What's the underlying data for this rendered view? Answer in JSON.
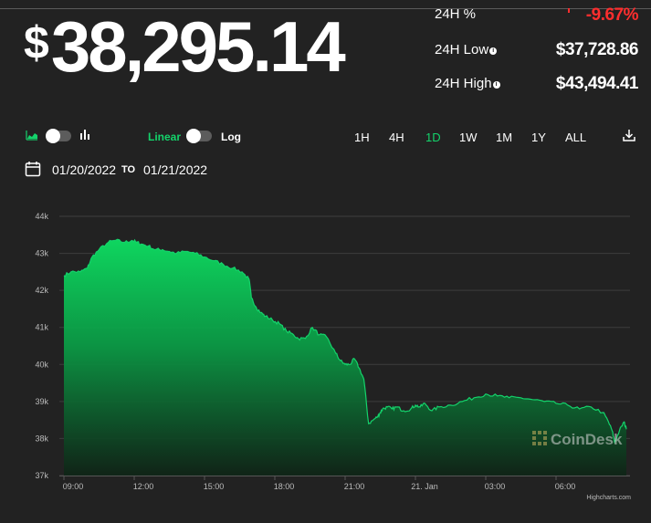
{
  "ticker": {
    "price": "$38,295.14",
    "stats": [
      {
        "label": "24H %",
        "value": "-9.67%"
      },
      {
        "label": "24H Low",
        "value": "$37,728.86"
      },
      {
        "label": "24H High",
        "value": "$43,494.41"
      }
    ]
  },
  "controls": {
    "linear_label": "Linear",
    "log_label": "Log",
    "ranges": [
      "1H",
      "4H",
      "1D",
      "1W",
      "1M",
      "1Y",
      "ALL"
    ],
    "active_range": "1D",
    "date_from": "01/20/2022",
    "to_label": "TO",
    "date_to": "01/21/2022"
  },
  "colors": {
    "accent": "#14d36b",
    "negative": "#ff2e2e",
    "background": "#222222"
  },
  "icons": {
    "area_chart": "area-chart-icon",
    "bar_chart": "bar-chart-icon",
    "calendar": "calendar-icon",
    "download": "download-icon",
    "info": "info-icon"
  },
  "watermark": "CoinDesk",
  "credits": "Highcharts.com",
  "chart_data": {
    "type": "area",
    "x_tick_labels": [
      "09:00",
      "12:00",
      "15:00",
      "18:00",
      "21:00",
      "21. Jan",
      "03:00",
      "06:00"
    ],
    "y_tick_labels": [
      "37k",
      "38k",
      "39k",
      "40k",
      "41k",
      "42k",
      "43k",
      "44k"
    ],
    "x_range_hours": [
      0,
      24
    ],
    "ylim": [
      37000,
      44000
    ],
    "grid": true,
    "series": [
      {
        "x": [
          0,
          0.3,
          0.7,
          1.0,
          1.2,
          1.5,
          1.9,
          2.2,
          2.6,
          2.9,
          3.1,
          3.3,
          3.6,
          3.9,
          4.2,
          4.5,
          4.8,
          5.2,
          5.6,
          6.0,
          6.4,
          6.8,
          7.2,
          7.6,
          7.9,
          8.0,
          8.2,
          8.4,
          8.6,
          8.9,
          9.2,
          9.5,
          9.8,
          10.0,
          10.3,
          10.6,
          10.9,
          11.2,
          11.6,
          11.8,
          12.0,
          12.2,
          12.4,
          12.6,
          12.8,
          13.0,
          13.2,
          13.4,
          13.5,
          13.6,
          13.8,
          14.0,
          14.2,
          14.5,
          14.8,
          15.0,
          15.2,
          15.4,
          15.7,
          16.0,
          16.5,
          17.0,
          17.5,
          18.0,
          18.5,
          19.0,
          19.5,
          20.0,
          20.5,
          21.0,
          21.5,
          22.0,
          22.5,
          23.0,
          23.2,
          23.4,
          23.5,
          23.7,
          23.9,
          24.0
        ],
        "values": [
          42400,
          42500,
          42500,
          42600,
          42900,
          43100,
          43300,
          43350,
          43300,
          43350,
          43300,
          43250,
          43200,
          43100,
          43100,
          43050,
          43000,
          43050,
          43000,
          42900,
          42800,
          42700,
          42600,
          42500,
          42300,
          41800,
          41550,
          41400,
          41300,
          41200,
          41100,
          40900,
          40800,
          40700,
          40700,
          41000,
          40800,
          40750,
          40300,
          40100,
          40000,
          40000,
          40150,
          39900,
          39600,
          38400,
          38500,
          38600,
          38700,
          38800,
          38850,
          38800,
          38850,
          38750,
          38800,
          38900,
          38850,
          38950,
          38750,
          38850,
          38900,
          39000,
          39100,
          39200,
          39150,
          39100,
          39100,
          39050,
          39000,
          38950,
          38900,
          38800,
          38850,
          38700,
          38500,
          38200,
          37900,
          38200,
          38450,
          38250
        ]
      }
    ]
  }
}
